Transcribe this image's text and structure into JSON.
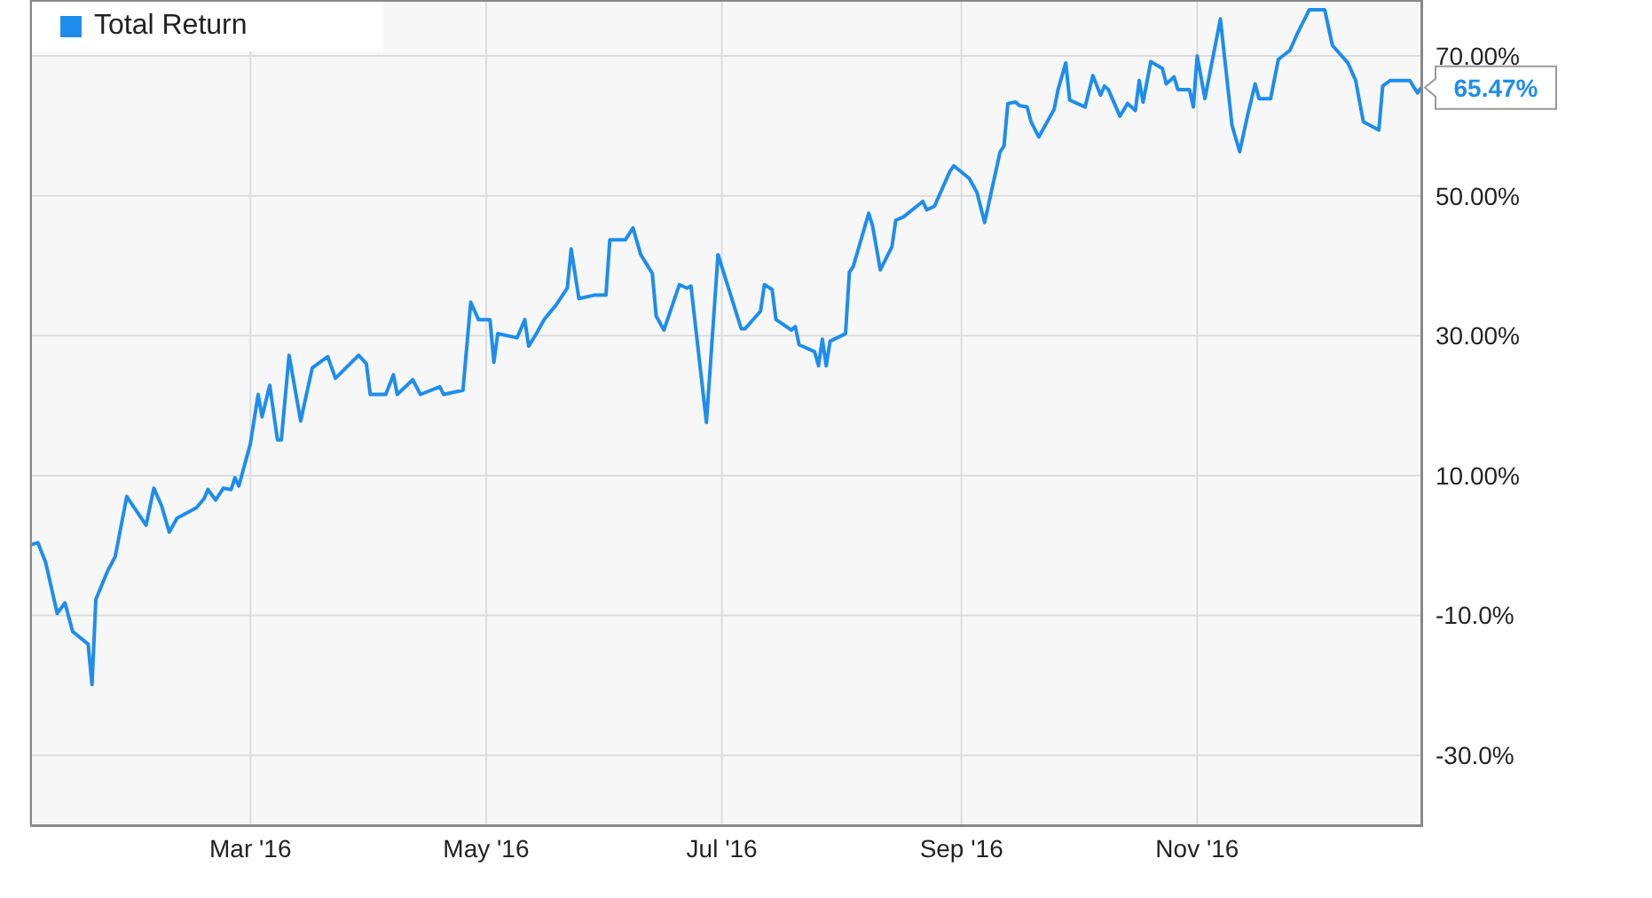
{
  "chart_data": {
    "type": "line",
    "xlim": [
      "2016-01-04",
      "2016-12-29"
    ],
    "xticks": [
      {
        "value": "2016-03-01",
        "label": "Mar '16"
      },
      {
        "value": "2016-05-01",
        "label": "May '16"
      },
      {
        "value": "2016-07-01",
        "label": "Jul '16"
      },
      {
        "value": "2016-09-01",
        "label": "Sep '16"
      },
      {
        "value": "2016-11-01",
        "label": "Nov '16"
      }
    ],
    "ylim": [
      -40,
      78
    ],
    "yticks": [
      {
        "value": -30,
        "label": "-30.0%"
      },
      {
        "value": -10,
        "label": "-10.0%"
      },
      {
        "value": 10,
        "label": "10.00%"
      },
      {
        "value": 30,
        "label": "30.00%"
      },
      {
        "value": 50,
        "label": "50.00%"
      },
      {
        "value": 70,
        "label": "70.00%"
      }
    ],
    "grid": true,
    "legend": "top left",
    "marker": "none",
    "line_style": "solid",
    "x": [
      "2016-01-04",
      "2016-01-06",
      "2016-01-08",
      "2016-01-11",
      "2016-01-13",
      "2016-01-15",
      "2016-01-19",
      "2016-01-20",
      "2016-01-21",
      "2016-01-24",
      "2016-01-26",
      "2016-01-29",
      "2016-02-03",
      "2016-02-05",
      "2016-02-07",
      "2016-02-09",
      "2016-02-11",
      "2016-02-16",
      "2016-02-18",
      "2016-02-19",
      "2016-02-21",
      "2016-02-23",
      "2016-02-25",
      "2016-02-26",
      "2016-02-27",
      "2016-03-01",
      "2016-03-03",
      "2016-03-04",
      "2016-03-06",
      "2016-03-08",
      "2016-03-09",
      "2016-03-11",
      "2016-03-14",
      "2016-03-17",
      "2016-03-21",
      "2016-03-23",
      "2016-03-29",
      "2016-03-31",
      "2016-04-01",
      "2016-04-05",
      "2016-04-07",
      "2016-04-08",
      "2016-04-12",
      "2016-04-14",
      "2016-04-19",
      "2016-04-20",
      "2016-04-25",
      "2016-04-27",
      "2016-04-29",
      "2016-05-02",
      "2016-05-03",
      "2016-05-04",
      "2016-05-09",
      "2016-05-11",
      "2016-05-12",
      "2016-05-14",
      "2016-05-16",
      "2016-05-17",
      "2016-05-19",
      "2016-05-22",
      "2016-05-23",
      "2016-05-25",
      "2016-05-29",
      "2016-06-01",
      "2016-06-02",
      "2016-06-06",
      "2016-06-08",
      "2016-06-10",
      "2016-06-13",
      "2016-06-14",
      "2016-06-16",
      "2016-06-20",
      "2016-06-22",
      "2016-06-23",
      "2016-06-27",
      "2016-06-30",
      "2016-07-06",
      "2016-07-07",
      "2016-07-11",
      "2016-07-12",
      "2016-07-14",
      "2016-07-15",
      "2016-07-19",
      "2016-07-20",
      "2016-07-21",
      "2016-07-25",
      "2016-07-26",
      "2016-07-27",
      "2016-07-28",
      "2016-07-29",
      "2016-08-02",
      "2016-08-03",
      "2016-08-04",
      "2016-08-08",
      "2016-08-09",
      "2016-08-11",
      "2016-08-14",
      "2016-08-15",
      "2016-08-17",
      "2016-08-22",
      "2016-08-23",
      "2016-08-25",
      "2016-08-29",
      "2016-08-30",
      "2016-09-03",
      "2016-09-05",
      "2016-09-07",
      "2016-09-11",
      "2016-09-12",
      "2016-09-13",
      "2016-09-15",
      "2016-09-16",
      "2016-09-18",
      "2016-09-19",
      "2016-09-21",
      "2016-09-25",
      "2016-09-26",
      "2016-09-28",
      "2016-09-29",
      "2016-10-03",
      "2016-10-05",
      "2016-10-07",
      "2016-10-08",
      "2016-10-09",
      "2016-10-12",
      "2016-10-14",
      "2016-10-16",
      "2016-10-17",
      "2016-10-18",
      "2016-10-20",
      "2016-10-23",
      "2016-10-24",
      "2016-10-26",
      "2016-10-27",
      "2016-10-30",
      "2016-10-31",
      "2016-11-01",
      "2016-11-03",
      "2016-11-07",
      "2016-11-10",
      "2016-11-12",
      "2016-11-14",
      "2016-11-16",
      "2016-11-17",
      "2016-11-20",
      "2016-11-22",
      "2016-11-25",
      "2016-11-27",
      "2016-11-30",
      "2016-12-04",
      "2016-12-06",
      "2016-12-10",
      "2016-12-12",
      "2016-12-14",
      "2016-12-18",
      "2016-12-19",
      "2016-12-21",
      "2016-12-23",
      "2016-12-26",
      "2016-12-28",
      "2016-12-29"
    ],
    "series": [
      {
        "name": "Total Return",
        "color": "#1e8ded",
        "values": [
          0.1,
          0.4,
          -2.4,
          -9.7,
          -8.2,
          -12.3,
          -14.1,
          -19.9,
          -7.7,
          -3.7,
          -1.6,
          7.0,
          2.9,
          8.2,
          5.7,
          1.9,
          3.9,
          5.4,
          6.7,
          8.0,
          6.5,
          8.2,
          8.0,
          9.7,
          8.5,
          14.6,
          21.6,
          18.4,
          22.9,
          15.1,
          15.1,
          27.2,
          17.8,
          25.4,
          27.0,
          23.9,
          27.2,
          26.0,
          21.6,
          21.6,
          24.4,
          21.6,
          23.7,
          21.6,
          22.7,
          21.6,
          22.2,
          34.8,
          32.3,
          32.3,
          26.2,
          30.3,
          29.7,
          32.3,
          28.5,
          30.3,
          32.3,
          33.0,
          34.3,
          36.8,
          42.4,
          35.3,
          35.8,
          35.8,
          43.7,
          43.7,
          45.4,
          41.6,
          38.9,
          32.8,
          30.8,
          37.3,
          36.8,
          37.1,
          17.6,
          41.6,
          31.0,
          31.0,
          33.5,
          37.3,
          36.6,
          32.3,
          30.8,
          31.3,
          28.7,
          27.7,
          25.7,
          29.5,
          25.7,
          29.2,
          30.3,
          39.1,
          39.9,
          47.5,
          45.7,
          39.4,
          42.7,
          46.5,
          47.0,
          49.2,
          48.0,
          48.5,
          53.5,
          54.3,
          52.5,
          50.5,
          46.2,
          56.3,
          57.1,
          63.2,
          63.4,
          62.9,
          62.7,
          60.6,
          58.4,
          62.4,
          65.2,
          69.0,
          63.7,
          62.7,
          67.2,
          64.4,
          65.7,
          65.2,
          61.4,
          63.2,
          62.2,
          66.5,
          63.4,
          69.2,
          68.2,
          66.0,
          67.0,
          65.2,
          65.2,
          62.7,
          70.0,
          63.9,
          75.3,
          60.1,
          56.3,
          61.4,
          66.0,
          63.9,
          63.9,
          69.5,
          70.8,
          73.3,
          76.6,
          76.6,
          71.5,
          69.0,
          66.5,
          60.6,
          59.4,
          65.7,
          66.5,
          66.5,
          66.5,
          64.7,
          65.47
        ],
        "value_labels": [
          null,
          null,
          null,
          null,
          null,
          null,
          null,
          null,
          null,
          null,
          null,
          null,
          null,
          null,
          null,
          null,
          null,
          null,
          null,
          null,
          null,
          null,
          null,
          null,
          null,
          null,
          null,
          null,
          null,
          null,
          null,
          null,
          null,
          null,
          null,
          null,
          null,
          null,
          null,
          null,
          null,
          null,
          null,
          null,
          null,
          null,
          null,
          null,
          null,
          null,
          null,
          null,
          null,
          null,
          null,
          null,
          null,
          null,
          null,
          null,
          null,
          null,
          null,
          null,
          null,
          null,
          null,
          null,
          null,
          null,
          null,
          null,
          null,
          null,
          null,
          null,
          null,
          null,
          null,
          null,
          null,
          null,
          null,
          null,
          null,
          null,
          null,
          null,
          null,
          null,
          null,
          null,
          null,
          null,
          null,
          null,
          null,
          null,
          null,
          null,
          null,
          null,
          null,
          null,
          null,
          null,
          null,
          null,
          null,
          null,
          null,
          null,
          null,
          null,
          null,
          null,
          null,
          null,
          null,
          null,
          null,
          null,
          null,
          null,
          null,
          null,
          null,
          null,
          null,
          null,
          null,
          null,
          null,
          null,
          null,
          null,
          null,
          null,
          null,
          null,
          null,
          null,
          null,
          null,
          null,
          null,
          null,
          null,
          null,
          null,
          null,
          null,
          null,
          null,
          null,
          null,
          null,
          null,
          null,
          null,
          "65.47%"
        ]
      }
    ]
  }
}
